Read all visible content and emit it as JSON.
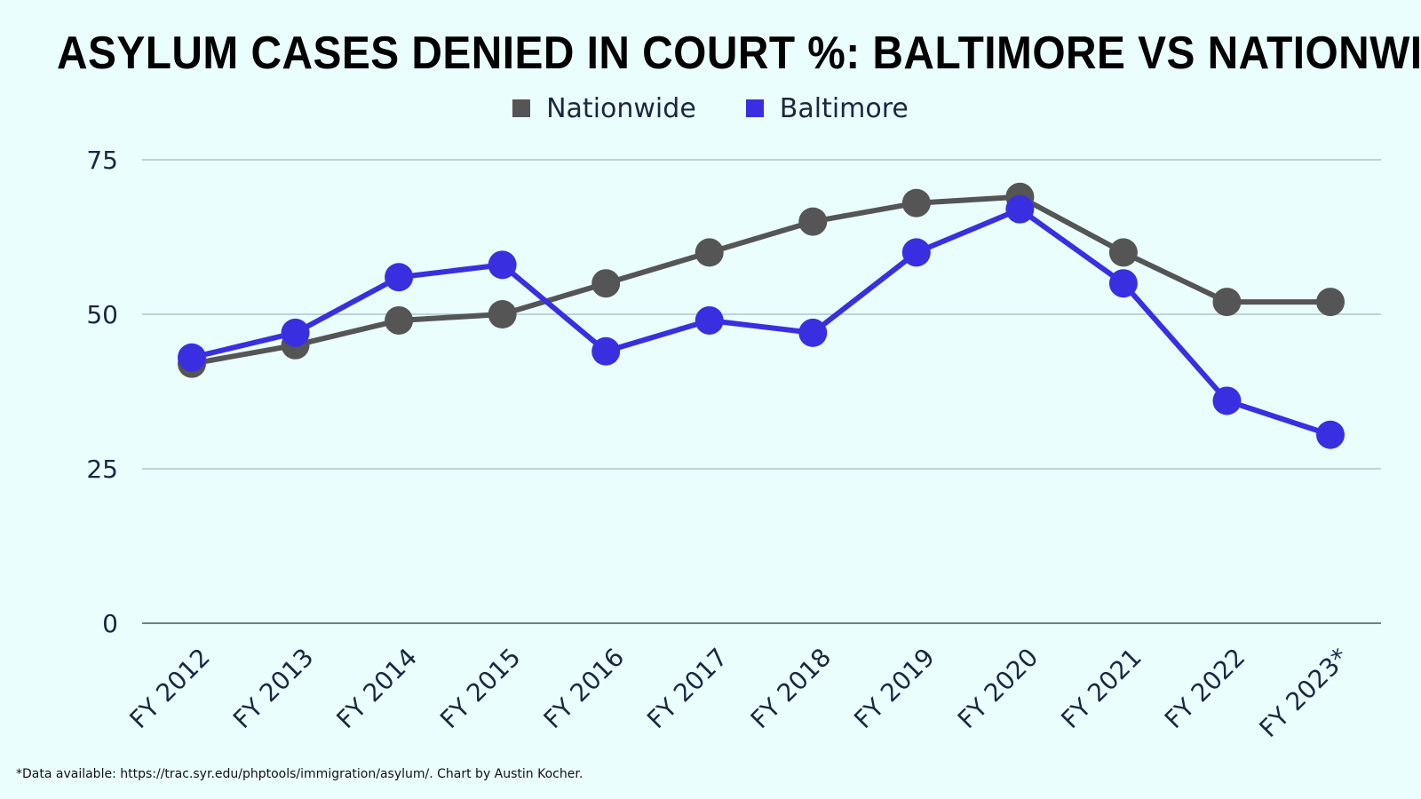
{
  "colors": {
    "background": "#ebfefe",
    "nationwide": "#555555",
    "baltimore": "#3a2fe0",
    "gridline": "#9fbcc0",
    "text": "#1b2740"
  },
  "chart_data": {
    "type": "line",
    "title": "ASYLUM CASES DENIED IN COURT %: BALTIMORE VS NATIONWIDE",
    "categories": [
      "FY 2012",
      "FY 2013",
      "FY 2014",
      "FY 2015",
      "FY 2016",
      "FY 2017",
      "FY 2018",
      "FY 2019",
      "FY 2020",
      "FY 2021",
      "FY 2022",
      "FY 2023*"
    ],
    "series": [
      {
        "name": "Nationwide",
        "color": "#555555",
        "values": [
          42,
          45,
          49,
          50,
          55,
          60,
          65,
          68,
          69,
          60,
          52,
          52
        ]
      },
      {
        "name": "Baltimore",
        "color": "#3a2fe0",
        "values": [
          43,
          47,
          56,
          58,
          44,
          49,
          47,
          60,
          67,
          55,
          36,
          30.5
        ]
      }
    ],
    "ylim": [
      0,
      75
    ],
    "yticks": [
      "0",
      "25",
      "50",
      "75"
    ],
    "xlabel": "",
    "ylabel": "",
    "grid": true,
    "legend_position": "top-center"
  },
  "footnote": "*Data available: https://trac.syr.edu/phptools/immigration/asylum/. Chart by Austin Kocher."
}
